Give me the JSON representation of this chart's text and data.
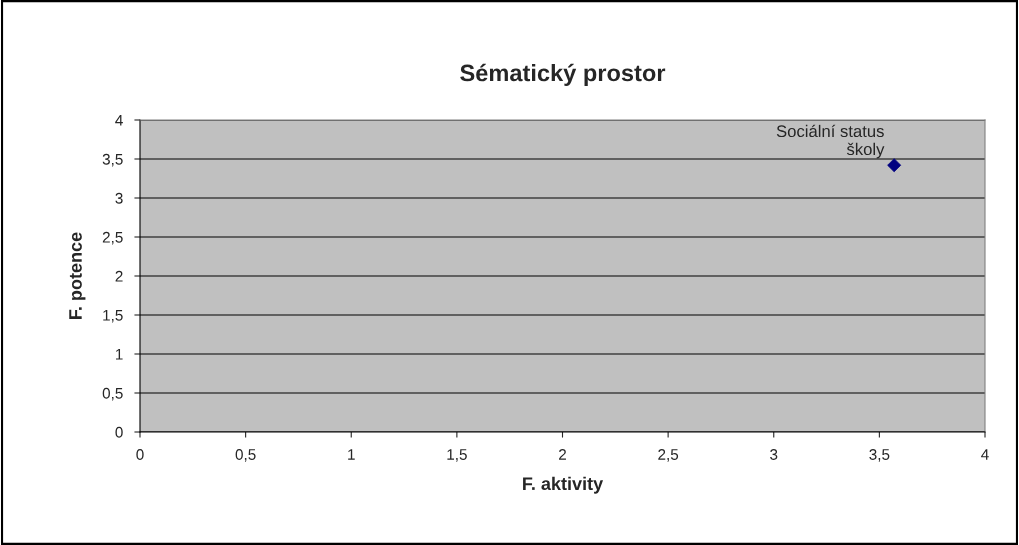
{
  "chart_data": {
    "type": "scatter",
    "title": "Sématický prostor",
    "xlabel": "F. aktivity",
    "ylabel": "F. potence",
    "x": [
      3.57
    ],
    "values": [
      3.42
    ],
    "color": "#000080",
    "marker": "diamond",
    "grid": "y",
    "xlim": [
      0,
      4
    ],
    "ylim": [
      0,
      4
    ],
    "xticks": [
      0,
      {
        "value": 0.5,
        "label": "0,5"
      },
      1,
      {
        "value": 1.5,
        "label": "1,5"
      },
      2,
      {
        "value": 2.5,
        "label": "2,5"
      },
      3,
      {
        "value": 3.5,
        "label": "3,5"
      },
      4
    ],
    "yticks": [
      0,
      {
        "value": 0.5,
        "label": "0,5"
      },
      1,
      {
        "value": 1.5,
        "label": "1,5"
      },
      2,
      {
        "value": 2.5,
        "label": "2,5"
      },
      3,
      {
        "value": 3.5,
        "label": "3,5"
      },
      4
    ],
    "annotations": [
      {
        "text": "Sociální status školy",
        "x": 3.57,
        "y": 3.42
      }
    ]
  }
}
